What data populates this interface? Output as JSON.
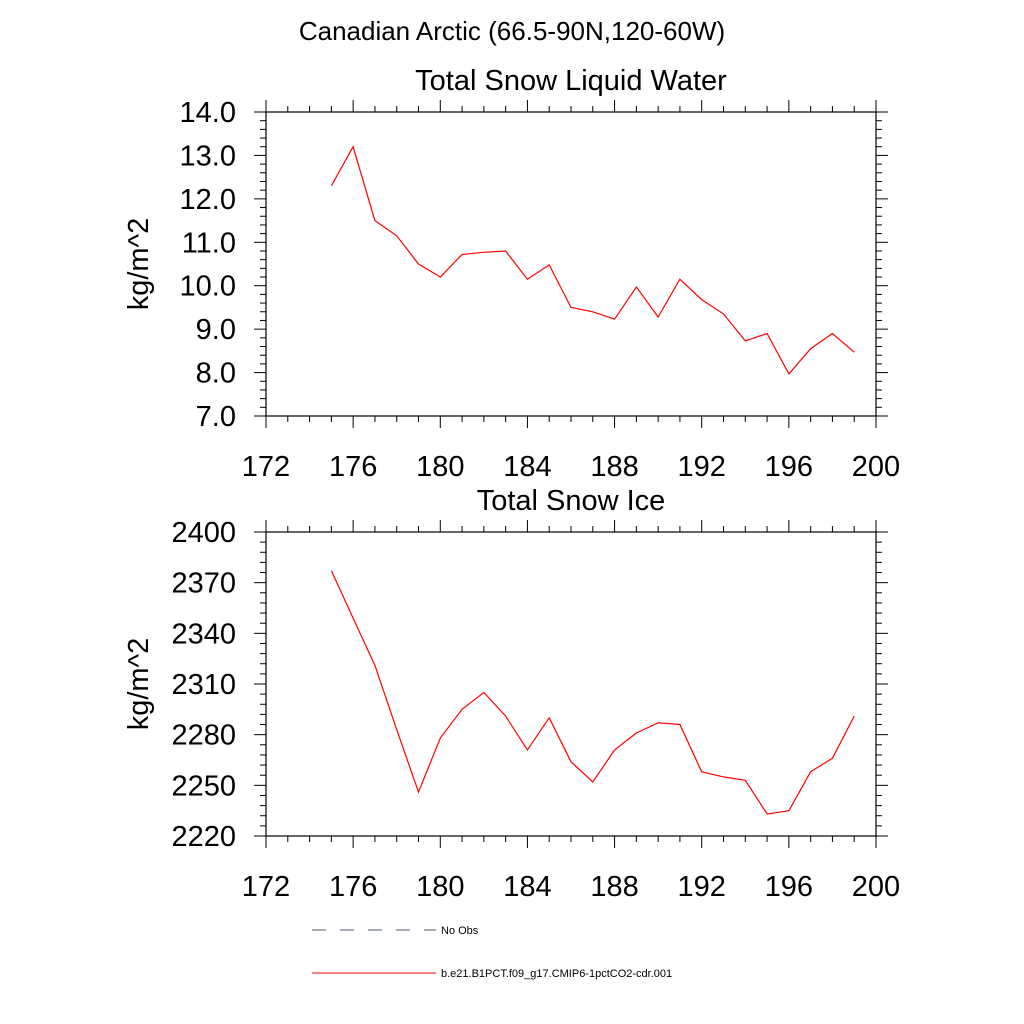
{
  "suptitle": "Canadian Arctic (66.5-90N,120-60W)",
  "legend": {
    "placement": "bottom",
    "entries": [
      {
        "label": "No Obs",
        "color": "#4a5a78",
        "style": "dashed"
      },
      {
        "label": "b.e21.B1PCT.f09_g17.CMIP6-1pctCO2-cdr.001",
        "color": "#ff0000",
        "style": "solid"
      }
    ]
  },
  "chart_data": [
    {
      "type": "line",
      "title": "Total Snow Liquid Water",
      "xlabel": "",
      "ylabel": "kg/m^2",
      "xlim": [
        172,
        200
      ],
      "ylim": [
        7.0,
        14.0
      ],
      "xticks": [
        "172",
        "176",
        "180",
        "184",
        "188",
        "192",
        "196",
        "200"
      ],
      "yticks": [
        "7.0",
        "8.0",
        "9.0",
        "10.0",
        "11.0",
        "12.0",
        "13.0",
        "14.0"
      ],
      "grid": false,
      "series": [
        {
          "name": "b.e21.B1PCT.f09_g17.CMIP6-1pctCO2-cdr.001",
          "color": "#ff0000",
          "x": [
            175,
            176,
            177,
            178,
            179,
            180,
            181,
            182,
            183,
            184,
            185,
            186,
            187,
            188,
            189,
            190,
            191,
            192,
            193,
            194,
            195,
            196,
            197,
            198,
            199
          ],
          "values": [
            12.3,
            13.2,
            11.5,
            11.15,
            10.5,
            10.2,
            10.72,
            10.77,
            10.8,
            10.15,
            10.48,
            9.5,
            9.4,
            9.23,
            9.97,
            9.28,
            10.15,
            9.68,
            9.35,
            8.73,
            8.9,
            7.97,
            8.55,
            8.9,
            8.47
          ]
        }
      ]
    },
    {
      "type": "line",
      "title": "Total Snow Ice",
      "xlabel": "",
      "ylabel": "kg/m^2",
      "xlim": [
        172,
        200
      ],
      "ylim": [
        2220,
        2400
      ],
      "xticks": [
        "172",
        "176",
        "180",
        "184",
        "188",
        "192",
        "196",
        "200"
      ],
      "yticks": [
        "2220",
        "2250",
        "2280",
        "2310",
        "2340",
        "2370",
        "2400"
      ],
      "grid": false,
      "series": [
        {
          "name": "b.e21.B1PCT.f09_g17.CMIP6-1pctCO2-cdr.001",
          "color": "#ff0000",
          "x": [
            175,
            176,
            177,
            178,
            179,
            180,
            181,
            182,
            183,
            184,
            185,
            186,
            187,
            188,
            189,
            190,
            191,
            192,
            193,
            194,
            195,
            196,
            197,
            198,
            199
          ],
          "values": [
            2377,
            2349,
            2321,
            2283,
            2246,
            2278,
            2295,
            2305,
            2291,
            2271,
            2290,
            2264,
            2252,
            2271,
            2281,
            2287,
            2286,
            2258,
            2255,
            2253,
            2233,
            2235,
            2258,
            2266,
            2291
          ]
        }
      ]
    }
  ]
}
